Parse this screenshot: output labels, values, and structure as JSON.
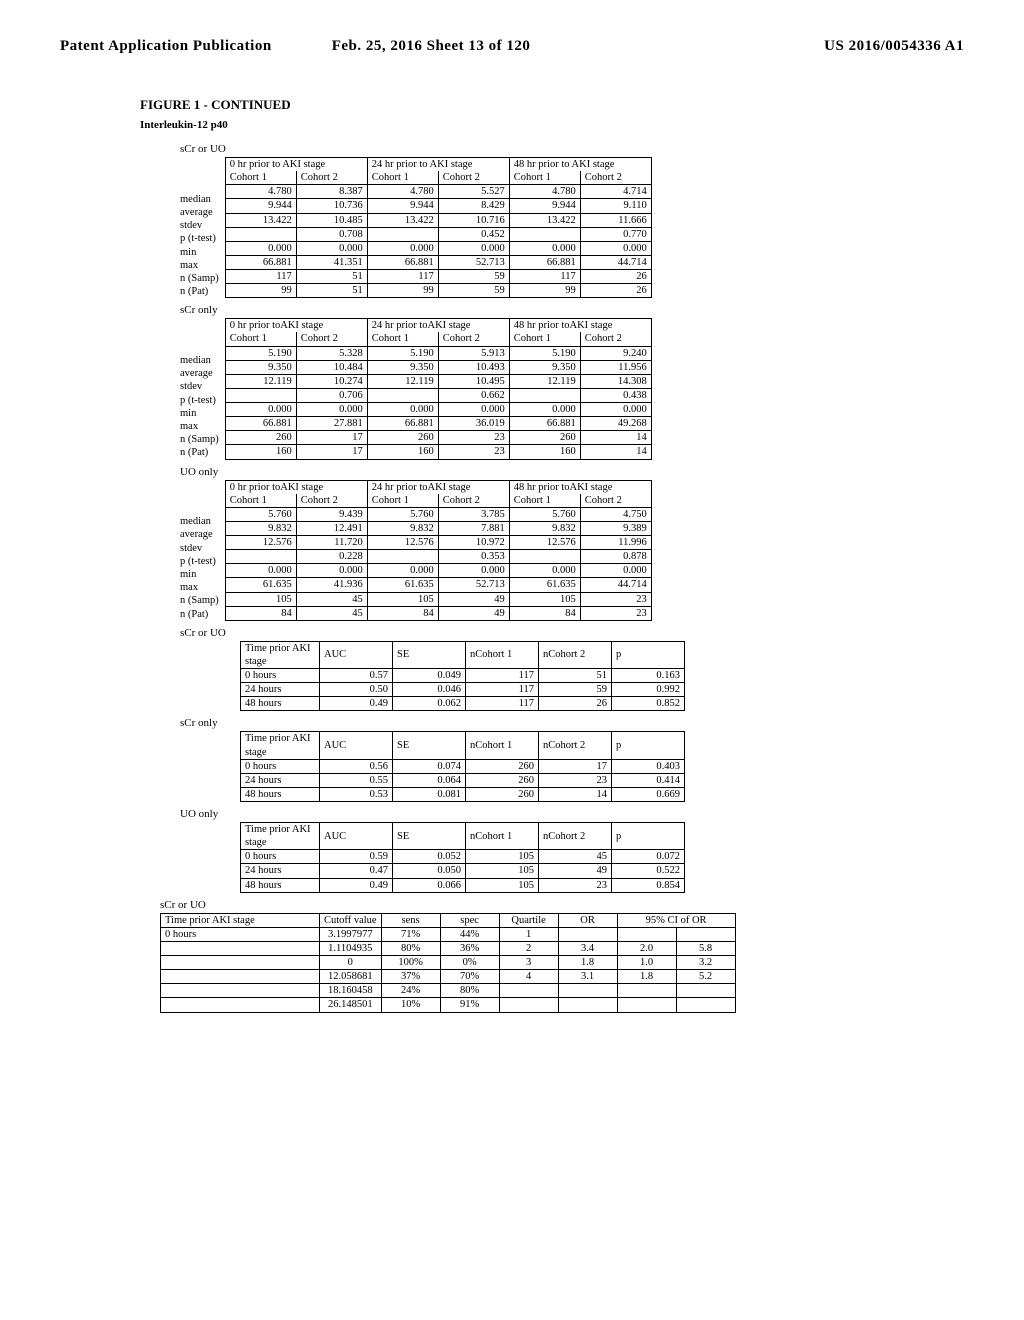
{
  "header": {
    "left": "Patent Application Publication",
    "center": "Feb. 25, 2016  Sheet 13 of 120",
    "right": "US 2016/0054336 A1"
  },
  "figure_title": "FIGURE 1 - CONTINUED",
  "analyte": "Interleukin-12 p40",
  "stat_row_labels": [
    "median",
    "average",
    "stdev",
    "p (t-test)",
    "min",
    "max",
    "n (Samp)",
    "n (Pat)"
  ],
  "col_groups": [
    "0 hr prior to AKI stage",
    "24 hr prior to AKI stage",
    "48 hr prior to AKI stage"
  ],
  "cohort_labels": [
    "Cohort 1",
    "Cohort 2"
  ],
  "stats_tables": [
    {
      "label": "sCr or UO",
      "timesufx": "to AKI stage",
      "rows": [
        [
          "4.780",
          "8.387",
          "4.780",
          "5.527",
          "4.780",
          "4.714"
        ],
        [
          "9.944",
          "10.736",
          "9.944",
          "8.429",
          "9.944",
          "9.110"
        ],
        [
          "13.422",
          "10.485",
          "13.422",
          "10.716",
          "13.422",
          "11.666"
        ],
        [
          "",
          "0.708",
          "",
          "0.452",
          "",
          "0.770"
        ],
        [
          "0.000",
          "0.000",
          "0.000",
          "0.000",
          "0.000",
          "0.000"
        ],
        [
          "66.881",
          "41.351",
          "66.881",
          "52.713",
          "66.881",
          "44.714"
        ],
        [
          "117",
          "51",
          "117",
          "59",
          "117",
          "26"
        ],
        [
          "99",
          "51",
          "99",
          "59",
          "99",
          "26"
        ]
      ]
    },
    {
      "label": "sCr only",
      "timesufx": "toAKI stage",
      "rows": [
        [
          "5.190",
          "5.328",
          "5.190",
          "5.913",
          "5.190",
          "9.240"
        ],
        [
          "9.350",
          "10.484",
          "9.350",
          "10.493",
          "9.350",
          "11.956"
        ],
        [
          "12.119",
          "10.274",
          "12.119",
          "10.495",
          "12.119",
          "14.308"
        ],
        [
          "",
          "0.706",
          "",
          "0.662",
          "",
          "0.438"
        ],
        [
          "0.000",
          "0.000",
          "0.000",
          "0.000",
          "0.000",
          "0.000"
        ],
        [
          "66.881",
          "27.881",
          "66.881",
          "36.019",
          "66.881",
          "49.268"
        ],
        [
          "260",
          "17",
          "260",
          "23",
          "260",
          "14"
        ],
        [
          "160",
          "17",
          "160",
          "23",
          "160",
          "14"
        ]
      ]
    },
    {
      "label": "UO only",
      "timesufx": "toAKI stage",
      "rows": [
        [
          "5.760",
          "9.439",
          "5.760",
          "3.785",
          "5.760",
          "4.750"
        ],
        [
          "9.832",
          "12.491",
          "9.832",
          "7.881",
          "9.832",
          "9.389"
        ],
        [
          "12.576",
          "11.720",
          "12.576",
          "10.972",
          "12.576",
          "11.996"
        ],
        [
          "",
          "0.228",
          "",
          "0.353",
          "",
          "0.878"
        ],
        [
          "0.000",
          "0.000",
          "0.000",
          "0.000",
          "0.000",
          "0.000"
        ],
        [
          "61.635",
          "41.936",
          "61.635",
          "52.713",
          "61.635",
          "44.714"
        ],
        [
          "105",
          "45",
          "105",
          "49",
          "105",
          "23"
        ],
        [
          "84",
          "45",
          "84",
          "49",
          "84",
          "23"
        ]
      ]
    }
  ],
  "auc_headers": [
    "Time prior AKI stage",
    "AUC",
    "SE",
    "nCohort 1",
    "nCohort 2",
    "p"
  ],
  "auc_tables": [
    {
      "label": "sCr or UO",
      "rows": [
        [
          "0 hours",
          "0.57",
          "0.049",
          "117",
          "51",
          "0.163"
        ],
        [
          "24 hours",
          "0.50",
          "0.046",
          "117",
          "59",
          "0.992"
        ],
        [
          "48 hours",
          "0.49",
          "0.062",
          "117",
          "26",
          "0.852"
        ]
      ]
    },
    {
      "label": "sCr only",
      "rows": [
        [
          "0 hours",
          "0.56",
          "0.074",
          "260",
          "17",
          "0.403"
        ],
        [
          "24 hours",
          "0.55",
          "0.064",
          "260",
          "23",
          "0.414"
        ],
        [
          "48 hours",
          "0.53",
          "0.081",
          "260",
          "14",
          "0.669"
        ]
      ]
    },
    {
      "label": "UO only",
      "rows": [
        [
          "0 hours",
          "0.59",
          "0.052",
          "105",
          "45",
          "0.072"
        ],
        [
          "24 hours",
          "0.47",
          "0.050",
          "105",
          "49",
          "0.522"
        ],
        [
          "48 hours",
          "0.49",
          "0.066",
          "105",
          "23",
          "0.854"
        ]
      ]
    }
  ],
  "cutoff": {
    "label": "sCr or UO",
    "headers": [
      "Time prior AKI stage",
      "Cutoff value",
      "sens",
      "spec",
      "Quartile",
      "OR",
      "95% CI of OR"
    ],
    "time_prior": "0 hours",
    "rows": [
      [
        "3.1997977",
        "71%",
        "44%",
        "1",
        "",
        "",
        ""
      ],
      [
        "1.1104935",
        "80%",
        "36%",
        "2",
        "3.4",
        "2.0",
        "5.8"
      ],
      [
        "0",
        "100%",
        "0%",
        "3",
        "1.8",
        "1.0",
        "3.2"
      ],
      [
        "12.058681",
        "37%",
        "70%",
        "4",
        "3.1",
        "1.8",
        "5.2"
      ],
      [
        "18.160458",
        "24%",
        "80%",
        "",
        "",
        "",
        ""
      ],
      [
        "26.148501",
        "10%",
        "91%",
        "",
        "",
        "",
        ""
      ]
    ]
  }
}
